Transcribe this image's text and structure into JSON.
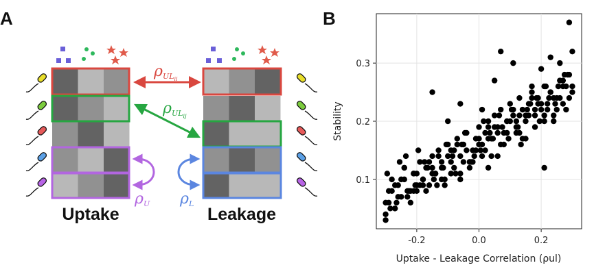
{
  "panel_a": {
    "letter": "A",
    "uptake_title": "Uptake",
    "leakage_title": "Leakage",
    "rho_symbol": "ρ",
    "label_ul_ii": {
      "main": "UL",
      "sub": "ii"
    },
    "label_ul_ij": {
      "main": "UL",
      "sub": "ij"
    },
    "label_u": "U",
    "label_l": "L",
    "uptake_matrix": [
      [
        0.25,
        0.8,
        0.55
      ],
      [
        0.25,
        0.55,
        0.8
      ],
      [
        0.55,
        0.25,
        0.8
      ],
      [
        0.55,
        0.8,
        0.25
      ],
      [
        0.8,
        0.55,
        0.25
      ]
    ],
    "leakage_matrix": [
      [
        0.8,
        0.55,
        0.25
      ],
      [
        0.55,
        0.25,
        0.8
      ],
      [
        0.25,
        0.8,
        0.8
      ],
      [
        0.55,
        0.25,
        0.55
      ],
      [
        0.25,
        0.8,
        0.8
      ]
    ],
    "species_colors": [
      "#e8de2a",
      "#7ccc3e",
      "#e65a5a",
      "#5ba0e6",
      "#b864e6"
    ],
    "colors": {
      "red": "#d9473f",
      "green": "#26a641",
      "purple": "#b266e0",
      "blue": "#5b86e0",
      "square": "#6a5fd8",
      "dot": "#2eb85c",
      "star": "#e05a4a"
    }
  },
  "panel_b": {
    "letter": "B",
    "chart_data": {
      "type": "scatter",
      "xlabel": "Uptake - Leakage Correlation (ρul)",
      "ylabel": "Stability",
      "xlim": [
        -0.33,
        0.33
      ],
      "ylim": [
        0.015,
        0.385
      ],
      "xticks": [
        -0.2,
        0.0,
        0.2
      ],
      "xtick_labels": [
        "-0.2",
        "0.0",
        "0.2"
      ],
      "yticks": [
        0.1,
        0.2,
        0.3
      ],
      "ytick_labels": [
        "0.1",
        "0.2",
        "0.3"
      ],
      "grid": true,
      "x": [
        -0.3,
        -0.29,
        -0.28,
        -0.27,
        -0.26,
        -0.25,
        -0.24,
        -0.23,
        -0.22,
        -0.21,
        -0.2,
        -0.19,
        -0.18,
        -0.17,
        -0.16,
        -0.15,
        -0.14,
        -0.13,
        -0.12,
        -0.11,
        -0.1,
        -0.09,
        -0.08,
        -0.07,
        -0.06,
        -0.05,
        -0.04,
        -0.03,
        -0.02,
        -0.01,
        0.0,
        0.01,
        0.02,
        0.03,
        0.04,
        0.05,
        0.06,
        0.07,
        0.08,
        0.09,
        0.1,
        0.11,
        0.12,
        0.13,
        0.14,
        0.15,
        0.16,
        0.17,
        0.18,
        0.19,
        0.2,
        0.21,
        0.22,
        0.23,
        0.24,
        0.25,
        0.26,
        0.27,
        0.28,
        0.29,
        0.3,
        -0.3,
        -0.28,
        -0.26,
        -0.24,
        -0.22,
        -0.2,
        -0.18,
        -0.16,
        -0.14,
        -0.12,
        -0.1,
        -0.08,
        -0.06,
        -0.04,
        -0.02,
        0.0,
        0.02,
        0.04,
        0.06,
        0.08,
        0.1,
        0.12,
        0.14,
        0.16,
        0.18,
        0.2,
        0.22,
        0.24,
        0.26,
        0.28,
        0.3,
        -0.29,
        -0.27,
        -0.25,
        -0.23,
        -0.21,
        -0.19,
        -0.17,
        -0.15,
        -0.13,
        -0.11,
        -0.09,
        -0.07,
        -0.05,
        -0.03,
        -0.01,
        0.01,
        0.03,
        0.05,
        0.07,
        0.09,
        0.11,
        0.13,
        0.15,
        0.17,
        0.19,
        0.21,
        0.23,
        0.25,
        0.27,
        0.29,
        -0.3,
        -0.27,
        -0.24,
        -0.21,
        -0.18,
        -0.15,
        -0.12,
        -0.09,
        -0.06,
        -0.03,
        0.0,
        0.03,
        0.06,
        0.09,
        0.12,
        0.15,
        0.18,
        0.21,
        0.24,
        0.27,
        0.3,
        -0.285,
        -0.255,
        -0.225,
        -0.195,
        -0.165,
        -0.135,
        -0.105,
        -0.075,
        -0.045,
        -0.015,
        0.015,
        0.045,
        0.075,
        0.105,
        0.135,
        0.165,
        0.195,
        0.225,
        0.255,
        0.285,
        -0.295,
        -0.265,
        -0.235,
        -0.205,
        -0.175,
        -0.145,
        -0.115,
        -0.085,
        -0.055,
        -0.025,
        0.005,
        0.035,
        0.065,
        0.095,
        0.125,
        0.155,
        0.185,
        0.215,
        0.245,
        0.275,
        -0.15,
        0.07,
        0.11,
        0.23,
        0.29,
        0.17,
        0.05,
        -0.1,
        -0.06,
        0.01,
        0.13,
        0.21,
        0.26,
        0.2,
        -0.2,
        0.03
      ],
      "y": [
        0.04,
        0.06,
        0.08,
        0.05,
        0.09,
        0.07,
        0.1,
        0.08,
        0.06,
        0.11,
        0.09,
        0.13,
        0.1,
        0.12,
        0.09,
        0.14,
        0.11,
        0.15,
        0.12,
        0.1,
        0.16,
        0.13,
        0.15,
        0.17,
        0.14,
        0.16,
        0.18,
        0.13,
        0.15,
        0.17,
        0.19,
        0.16,
        0.18,
        0.2,
        0.17,
        0.21,
        0.19,
        0.22,
        0.18,
        0.2,
        0.23,
        0.21,
        0.19,
        0.24,
        0.22,
        0.2,
        0.23,
        0.25,
        0.21,
        0.24,
        0.22,
        0.26,
        0.23,
        0.25,
        0.21,
        0.24,
        0.27,
        0.23,
        0.26,
        0.28,
        0.25,
        0.06,
        0.1,
        0.07,
        0.12,
        0.08,
        0.11,
        0.09,
        0.13,
        0.11,
        0.1,
        0.14,
        0.12,
        0.11,
        0.15,
        0.13,
        0.17,
        0.15,
        0.14,
        0.18,
        0.16,
        0.2,
        0.18,
        0.17,
        0.21,
        0.19,
        0.23,
        0.22,
        0.2,
        0.24,
        0.22,
        0.26,
        0.08,
        0.05,
        0.1,
        0.07,
        0.11,
        0.09,
        0.08,
        0.12,
        0.14,
        0.09,
        0.11,
        0.16,
        0.13,
        0.12,
        0.15,
        0.14,
        0.17,
        0.19,
        0.16,
        0.2,
        0.22,
        0.18,
        0.21,
        0.24,
        0.23,
        0.2,
        0.25,
        0.22,
        0.27,
        0.24,
        0.03,
        0.09,
        0.12,
        0.08,
        0.1,
        0.11,
        0.13,
        0.15,
        0.1,
        0.13,
        0.16,
        0.19,
        0.14,
        0.18,
        0.2,
        0.17,
        0.22,
        0.21,
        0.24,
        0.26,
        0.32,
        0.05,
        0.13,
        0.08,
        0.15,
        0.12,
        0.09,
        0.16,
        0.11,
        0.18,
        0.14,
        0.2,
        0.17,
        0.19,
        0.22,
        0.16,
        0.23,
        0.2,
        0.24,
        0.26,
        0.28,
        0.11,
        0.06,
        0.14,
        0.09,
        0.13,
        0.1,
        0.12,
        0.14,
        0.16,
        0.13,
        0.15,
        0.18,
        0.21,
        0.17,
        0.19,
        0.22,
        0.24,
        0.26,
        0.23,
        0.28,
        0.25,
        0.32,
        0.3,
        0.31,
        0.37,
        0.26,
        0.27,
        0.2,
        0.23,
        0.22,
        0.21,
        0.12,
        0.3,
        0.29,
        0.08,
        0.12
      ]
    }
  }
}
